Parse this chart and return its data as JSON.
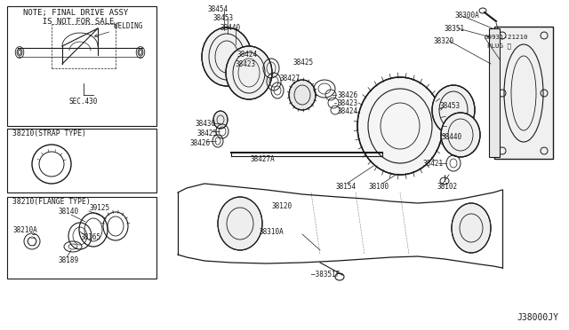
{
  "bg_color": "#ffffff",
  "diagram_id": "J38000JY",
  "note_text1": "NOTE; FINAL DRIVE ASSY",
  "note_text2": "  IS NOT FOR SALE.",
  "welding_label": "WELDING",
  "sec_label": "SEC.430",
  "strap_label": "38210(STRAP TYPE)",
  "flange_label": "38210(FLANGE TYPE)",
  "lc": "#1a1a1a",
  "tc": "#1a1a1a",
  "fs": 5.8,
  "fn": "DejaVu Sans Mono"
}
